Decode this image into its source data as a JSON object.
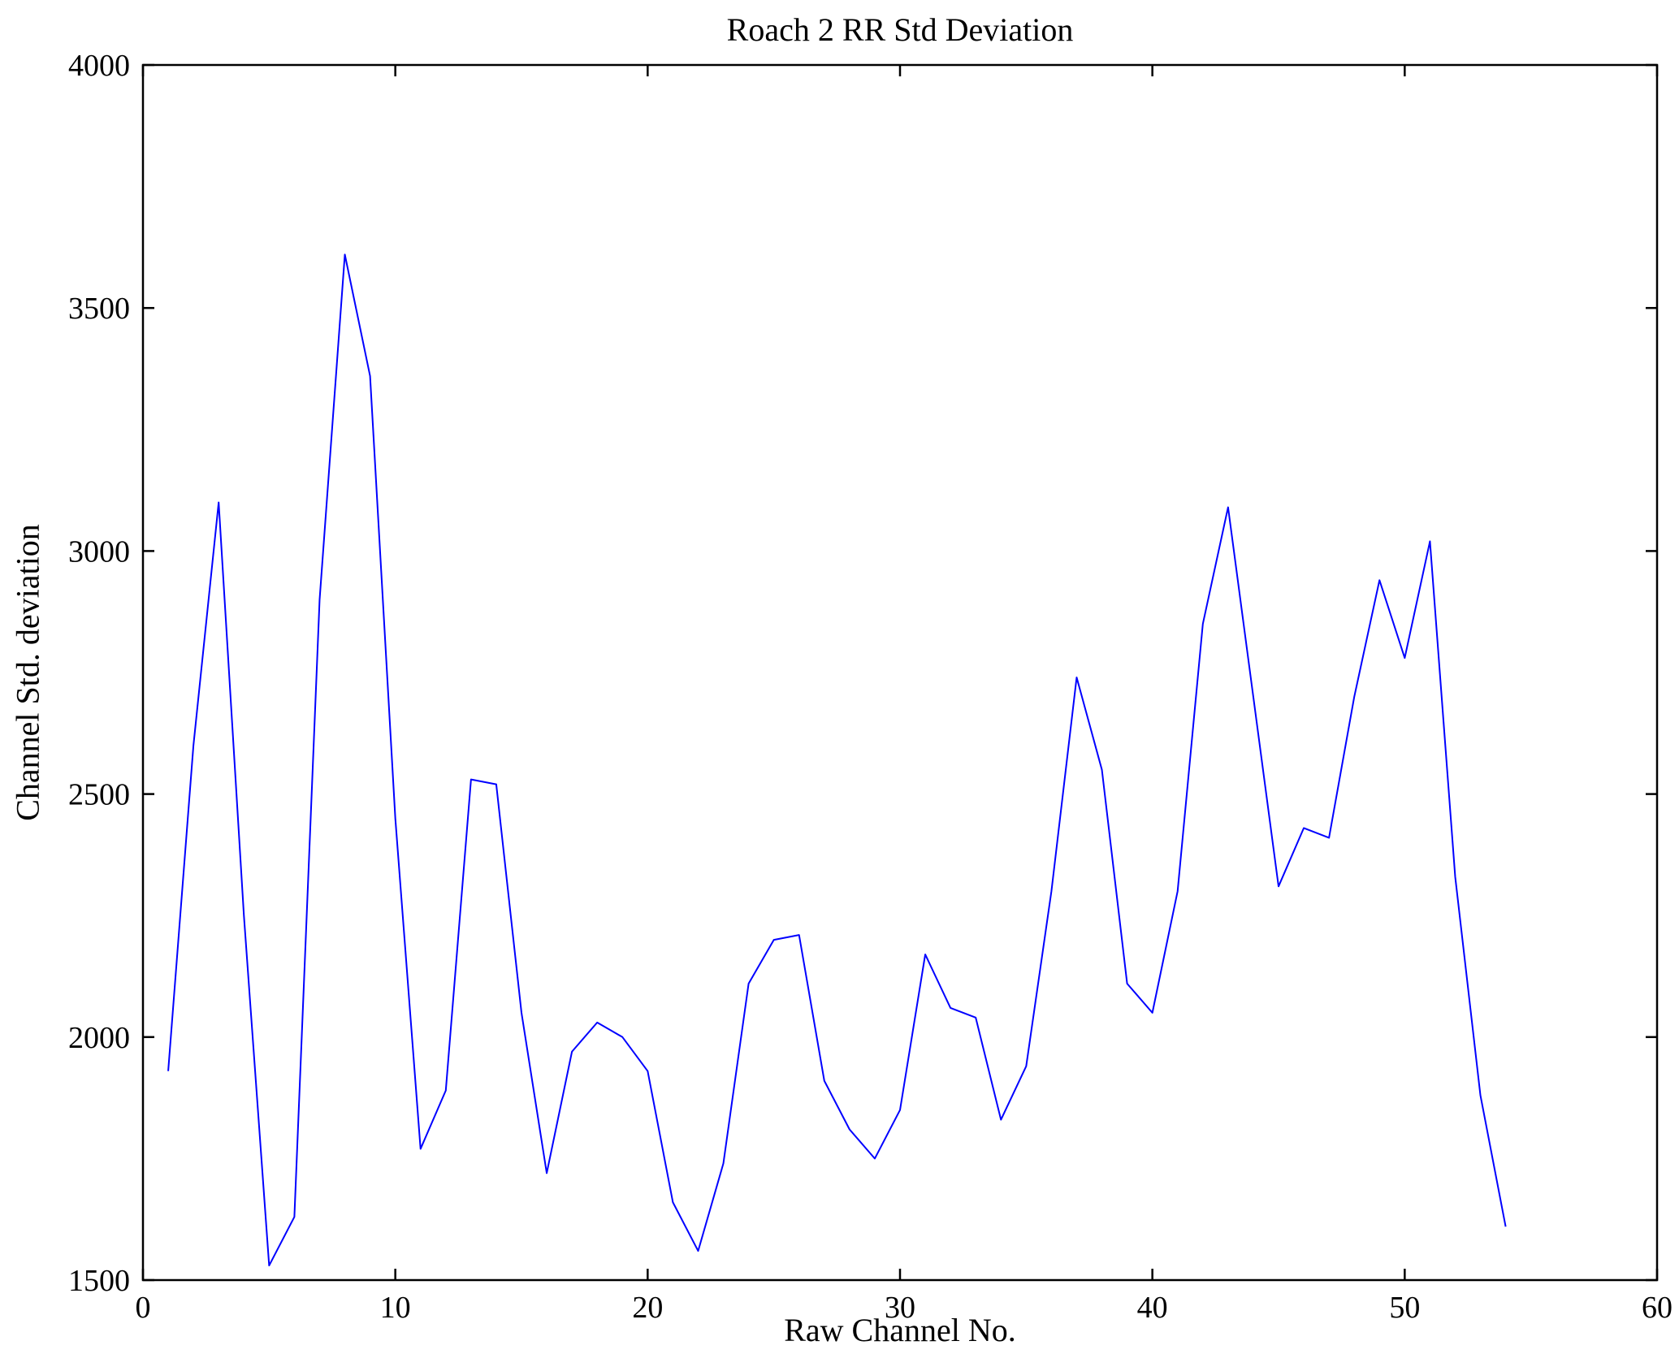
{
  "chart_data": {
    "type": "line",
    "title": "Roach 2 RR Std Deviation",
    "xlabel": "Raw Channel No.",
    "ylabel": "Channel Std. deviation",
    "xlim": [
      0,
      60
    ],
    "ylim": [
      1500,
      4000
    ],
    "x_ticks": [
      0,
      10,
      20,
      30,
      40,
      50,
      60
    ],
    "y_ticks": [
      1500,
      2000,
      2500,
      3000,
      3500,
      4000
    ],
    "grid": false,
    "legend": "none",
    "line_color": "#0000FF",
    "axis_color": "#000000",
    "series": [
      {
        "name": "Channel Std deviation",
        "x": [
          1,
          2,
          3,
          4,
          5,
          6,
          7,
          8,
          9,
          10,
          11,
          12,
          13,
          14,
          15,
          16,
          17,
          18,
          19,
          20,
          21,
          22,
          23,
          24,
          25,
          26,
          27,
          28,
          29,
          30,
          31,
          32,
          33,
          34,
          35,
          36,
          37,
          38,
          39,
          40,
          41,
          42,
          43,
          44,
          45,
          46,
          47,
          48,
          49,
          50,
          51,
          52,
          53,
          54
        ],
        "y": [
          1930,
          2600,
          3100,
          2250,
          1530,
          1630,
          2900,
          3610,
          3360,
          2450,
          1770,
          1890,
          2530,
          2520,
          2050,
          1720,
          1970,
          2030,
          2000,
          1930,
          1660,
          1560,
          1740,
          2110,
          2200,
          2210,
          1910,
          1810,
          1750,
          1850,
          2170,
          2060,
          2040,
          1830,
          1940,
          2300,
          2740,
          2550,
          2110,
          2050,
          2300,
          2850,
          3090,
          2700,
          2310,
          2430,
          2410,
          2700,
          2940,
          2780,
          3020,
          2330,
          1880,
          1610
        ]
      }
    ]
  }
}
